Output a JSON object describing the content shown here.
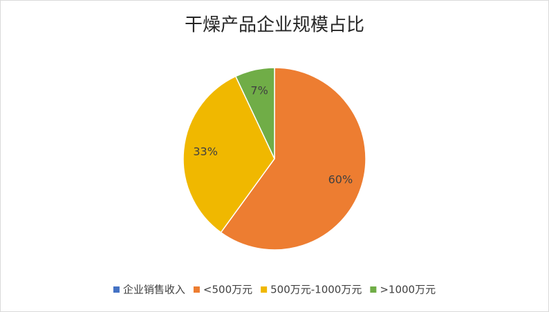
{
  "chart_data": {
    "type": "pie",
    "title": "干燥产品企业规模占比",
    "categories": [
      "企业销售收入",
      "<500万元",
      "500万元-1000万元",
      ">1000万元"
    ],
    "values": [
      null,
      60,
      33,
      7
    ],
    "value_labels": [
      null,
      "60%",
      "33%",
      "7%"
    ],
    "colors": [
      "#4472c4",
      "#ed7d31",
      "#f0b800",
      "#70ad47"
    ],
    "legend": "bottom"
  }
}
